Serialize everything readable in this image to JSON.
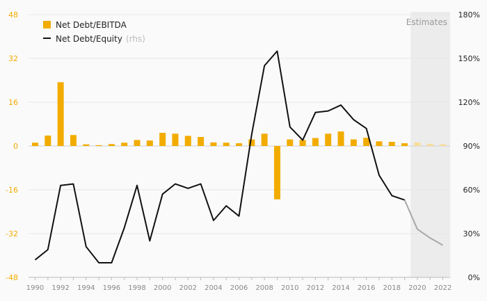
{
  "chart_data": {
    "type": "bar",
    "x_start": 1990,
    "x": [
      1990,
      1991,
      1992,
      1993,
      1994,
      1995,
      1996,
      1997,
      1998,
      1999,
      2000,
      2001,
      2002,
      2003,
      2004,
      2005,
      2006,
      2007,
      2008,
      2009,
      2010,
      2011,
      2012,
      2013,
      2014,
      2015,
      2016,
      2017,
      2018,
      2019,
      2020,
      2021,
      2022
    ],
    "estimates_from": 2020,
    "estimates_label": "Estimates",
    "series": [
      {
        "name": "Net Debt/EBITDA",
        "kind": "bar",
        "axis": "left",
        "color": "#f2ac00",
        "estimate_color": "#f7dd9c",
        "values": [
          1.2,
          3.8,
          23.3,
          4.0,
          0.6,
          0.3,
          0.7,
          1.2,
          2.2,
          2.0,
          4.8,
          4.5,
          3.7,
          3.3,
          1.3,
          1.2,
          1.0,
          2.4,
          4.5,
          -19.5,
          2.4,
          2.2,
          2.9,
          4.5,
          5.3,
          2.4,
          3.0,
          1.7,
          1.5,
          1.0,
          1.3,
          0.8,
          0.6
        ]
      },
      {
        "name": "Net Debt/Equity",
        "name_suffix": "(rhs)",
        "kind": "line",
        "axis": "right",
        "color": "#111111",
        "estimate_color": "#a8a8a8",
        "values": [
          12,
          19,
          63,
          64,
          21,
          10,
          10,
          34,
          63,
          25,
          57,
          64,
          61,
          64,
          39,
          49,
          42,
          98,
          145,
          155,
          103,
          94,
          113,
          114,
          118,
          108,
          102,
          70,
          56,
          53,
          33,
          27,
          22
        ]
      }
    ],
    "y_left": {
      "range": [
        -48,
        48
      ],
      "ticks": [
        48,
        32,
        16,
        0,
        -16,
        -32,
        -48
      ],
      "tick_labels": [
        "48",
        "32",
        "16",
        "0",
        "-16",
        "-32",
        "-48"
      ]
    },
    "y_right": {
      "range": [
        0,
        180
      ],
      "ticks": [
        180,
        150,
        120,
        90,
        60,
        30,
        0
      ],
      "tick_labels": [
        "180%",
        "150%",
        "120%",
        "90%",
        "60%",
        "30%",
        "0%"
      ]
    },
    "x_tick_labels": [
      "1990",
      "1992",
      "1994",
      "1996",
      "1998",
      "2000",
      "2002",
      "2004",
      "2006",
      "2008",
      "2010",
      "2012",
      "2014",
      "2016",
      "2018",
      "2020",
      "2022"
    ],
    "grid": true,
    "legend_position": "top-left"
  }
}
